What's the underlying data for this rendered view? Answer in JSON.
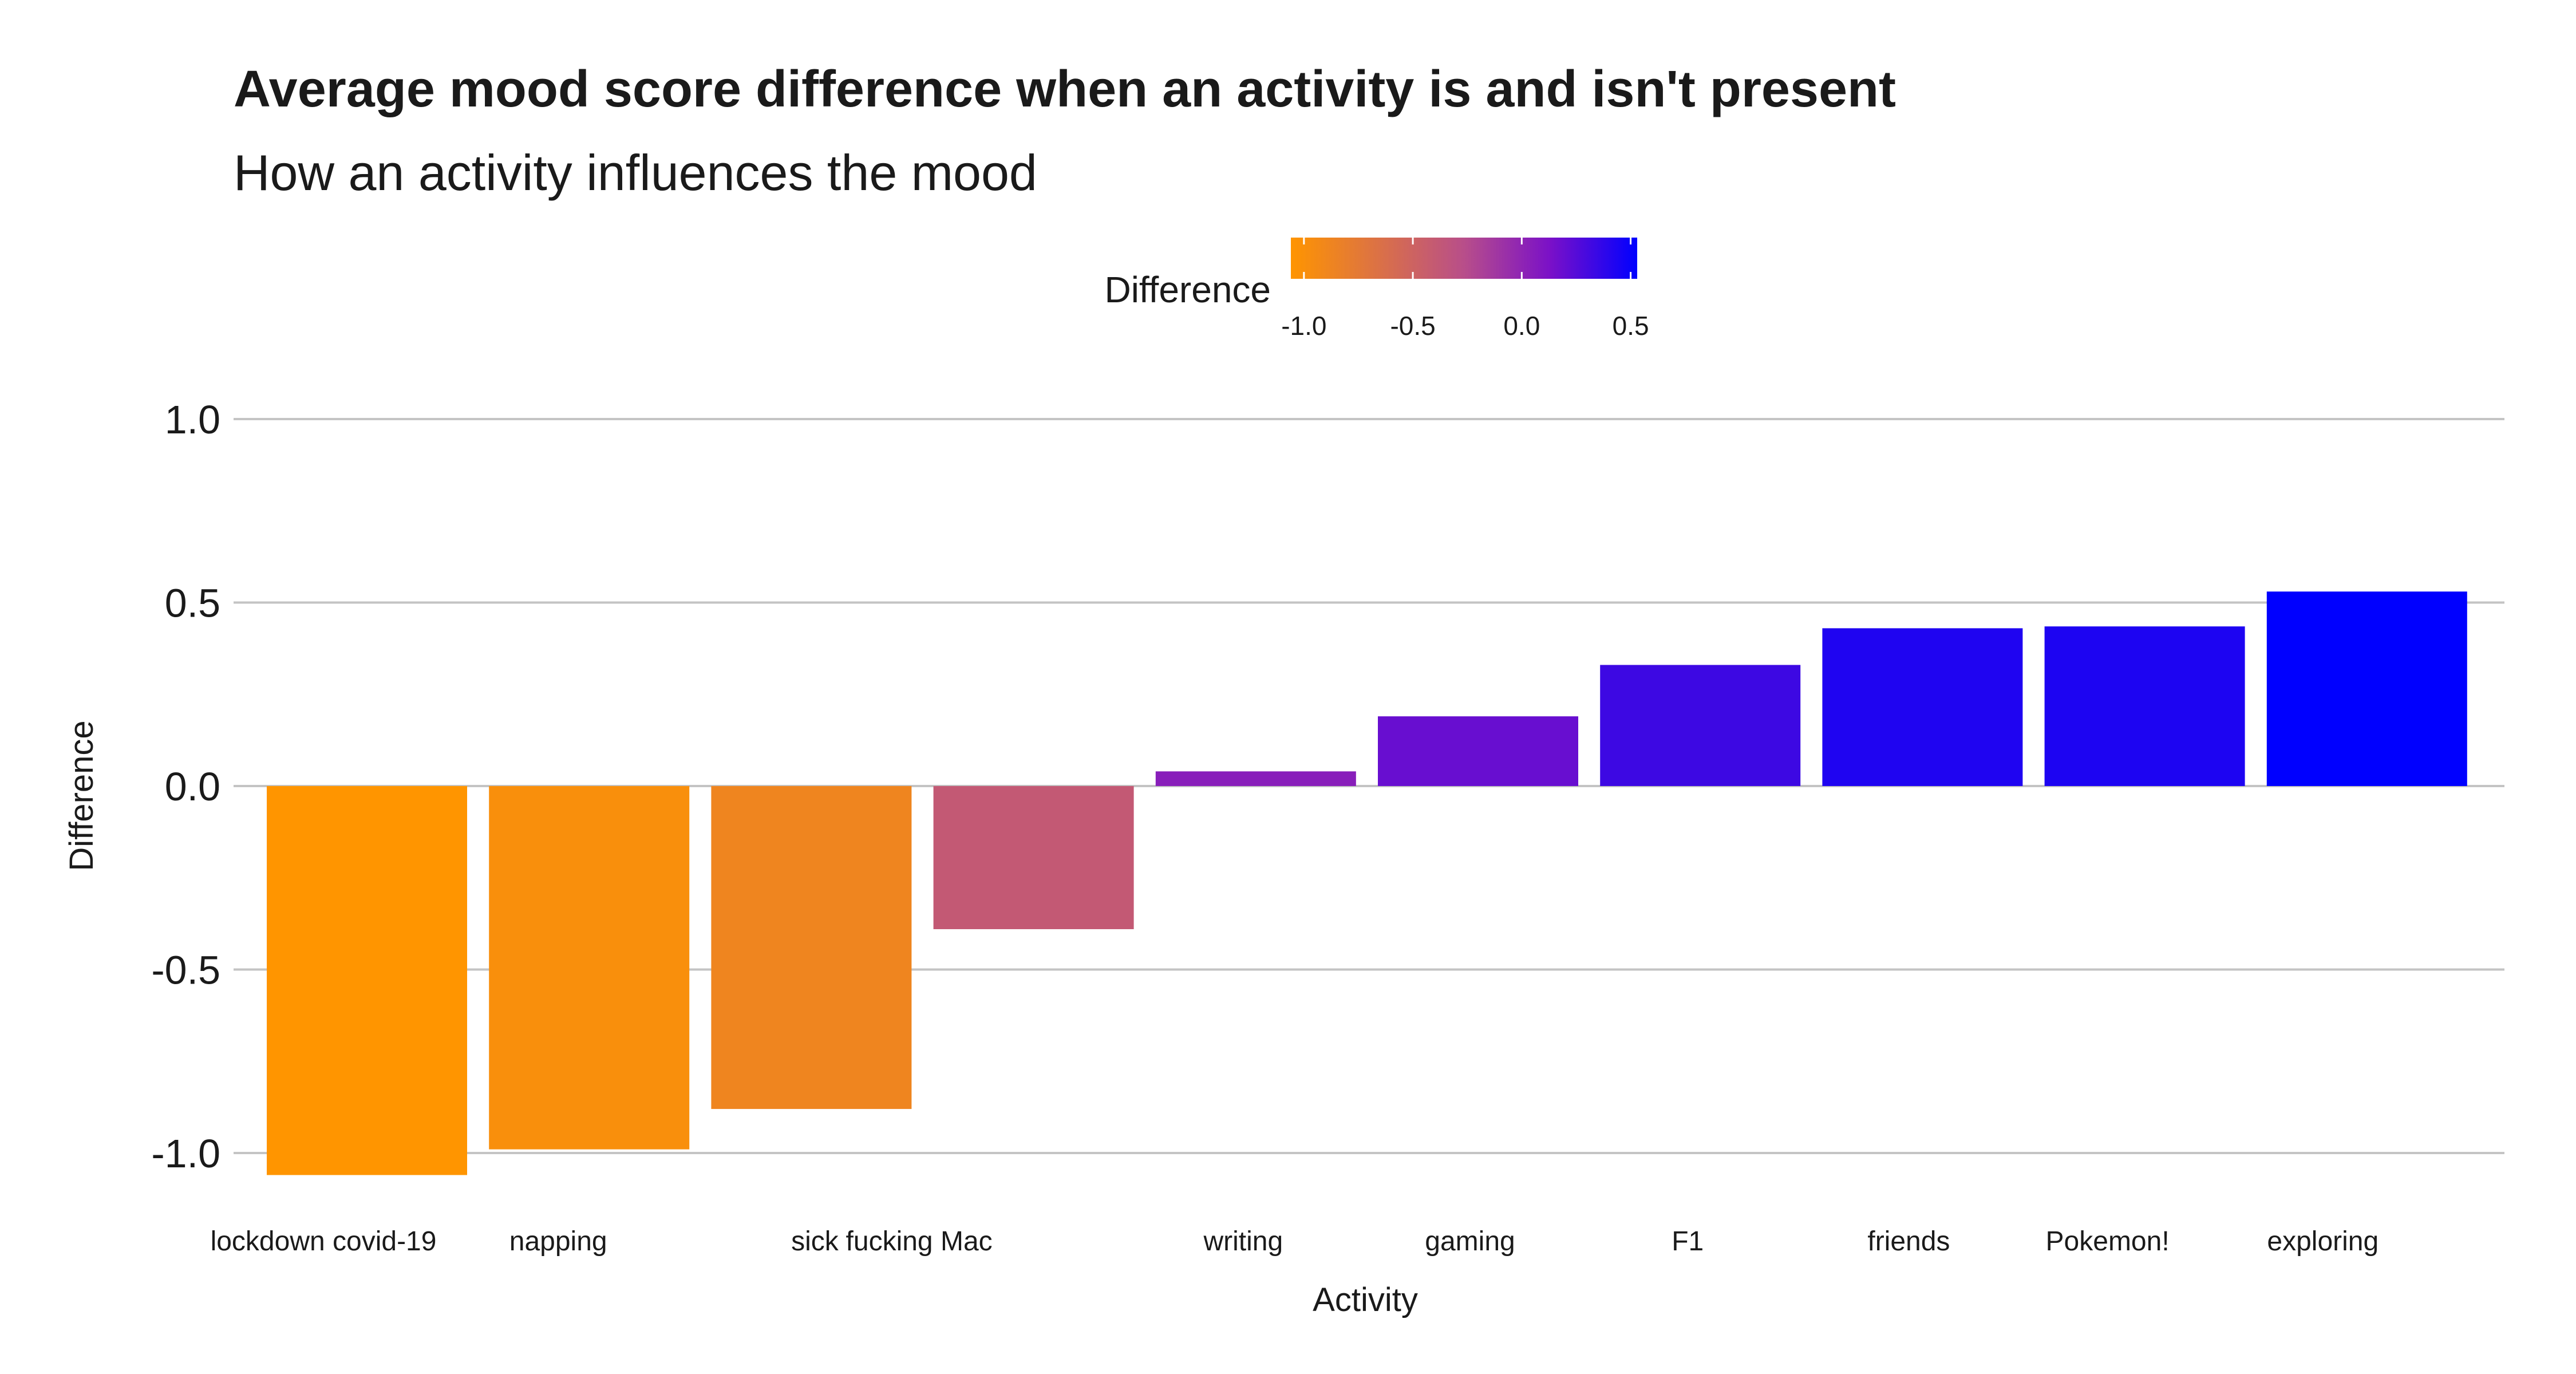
{
  "chart_data": {
    "type": "bar",
    "title": "Average mood score difference when an activity is and isn't present",
    "subtitle": "How an activity influences the mood",
    "xlabel": "Activity",
    "ylabel": "Difference",
    "categories": [
      "lockdown covid-19",
      "napping",
      "sick",
      "fucking Mac",
      "writing",
      "gaming",
      "F1",
      "friends",
      "Pokemon!",
      "exploring"
    ],
    "values": [
      -1.06,
      -0.99,
      -0.88,
      -0.39,
      0.04,
      0.19,
      0.33,
      0.43,
      0.435,
      0.53
    ],
    "ylim": [
      -1.1,
      1.1
    ],
    "yticks": [
      "1.0",
      "0.5",
      "0.0",
      "-0.5",
      "-1.0"
    ],
    "ytick_values": [
      1.0,
      0.5,
      0.0,
      -0.5,
      -1.0
    ],
    "grid": true,
    "legend": {
      "title": "Difference",
      "position": "top",
      "type": "colorbar",
      "ticks": [
        "-1.0",
        "-0.5",
        "0.0",
        "0.5"
      ],
      "tick_values": [
        -1.0,
        -0.5,
        0.0,
        0.5
      ],
      "range": [
        -1.06,
        0.53
      ],
      "color_low": "#ff9500",
      "color_mid": "#b84e8a",
      "color_high": "#0000ff"
    }
  }
}
